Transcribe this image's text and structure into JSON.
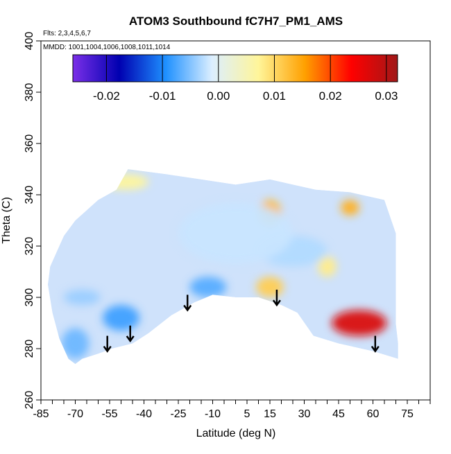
{
  "chart_data": {
    "type": "heatmap",
    "title": "ATOM3 Southbound fC7H7_PM1_AMS",
    "flights_note": "Flts: 2,3,4,5,6,7",
    "mmdd_note": "MMDD: 1001,1004,1006,1008,1011,1014",
    "xlabel": "Latitude (deg N)",
    "ylabel": "Theta (C)",
    "xlim": [
      -85,
      85
    ],
    "ylim": [
      260,
      400
    ],
    "x_tick_labels": [
      "-85",
      "-70",
      "-55",
      "-40",
      "-25",
      "-10",
      "5",
      "15",
      "30",
      "45",
      "60",
      "75"
    ],
    "x_tick_values": [
      -85,
      -70,
      -55,
      -40,
      -25,
      -10,
      5,
      15,
      30,
      45,
      60,
      75
    ],
    "y_tick_labels": [
      "260",
      "280",
      "300",
      "320",
      "340",
      "360",
      "380",
      "400"
    ],
    "y_tick_values": [
      260,
      280,
      300,
      320,
      340,
      360,
      380,
      400
    ],
    "colorbar": {
      "min": -0.026,
      "max": 0.032,
      "tick_labels": [
        "-0.02",
        "-0.01",
        "0.00",
        "0.01",
        "0.02",
        "0.03"
      ],
      "tick_values": [
        -0.02,
        -0.01,
        0.0,
        0.01,
        0.02,
        0.03
      ],
      "colors": [
        "#7b2fe8",
        "#0000b0",
        "#1e90ff",
        "#dcefff",
        "#fff59a",
        "#ffa000",
        "#ff0000",
        "#a01818"
      ]
    },
    "flight_coverage_outline": [
      [
        -82,
        305
      ],
      [
        -81,
        312
      ],
      [
        -78,
        318
      ],
      [
        -75,
        324
      ],
      [
        -70,
        330
      ],
      [
        -65,
        334
      ],
      [
        -60,
        338
      ],
      [
        -52,
        342
      ],
      [
        -47,
        350
      ],
      [
        -30,
        348
      ],
      [
        -15,
        346
      ],
      [
        0,
        344
      ],
      [
        15,
        346
      ],
      [
        25,
        344
      ],
      [
        35,
        342
      ],
      [
        50,
        341
      ],
      [
        65,
        338
      ],
      [
        70,
        325
      ],
      [
        70,
        300
      ],
      [
        70,
        290
      ],
      [
        71,
        282
      ],
      [
        71,
        276
      ],
      [
        60,
        279
      ],
      [
        45,
        282
      ],
      [
        34,
        285
      ],
      [
        27,
        294
      ],
      [
        20,
        297
      ],
      [
        10,
        300
      ],
      [
        0,
        300
      ],
      [
        -10,
        301
      ],
      [
        -18,
        298
      ],
      [
        -28,
        293
      ],
      [
        -38,
        286
      ],
      [
        -45,
        282
      ],
      [
        -54,
        280
      ],
      [
        -60,
        278
      ],
      [
        -67,
        276
      ],
      [
        -70,
        274
      ],
      [
        -73,
        276
      ],
      [
        -77,
        284
      ],
      [
        -80,
        294
      ]
    ],
    "anomaly_regions": [
      {
        "lat": -48,
        "theta": 345,
        "rx": 10,
        "ry": 3,
        "value": 0.007
      },
      {
        "lat": 15,
        "theta": 333,
        "rx": 5,
        "ry": 5,
        "value": 0.013
      },
      {
        "lat": 50,
        "theta": 335,
        "rx": 4,
        "ry": 3,
        "value": 0.014
      },
      {
        "lat": 54,
        "theta": 290,
        "rx": 12,
        "ry": 5,
        "value": 0.027
      },
      {
        "lat": 15,
        "theta": 304,
        "rx": 6,
        "ry": 4,
        "value": 0.011
      },
      {
        "lat": 40,
        "theta": 312,
        "rx": 4,
        "ry": 4,
        "value": 0.008
      },
      {
        "lat": -67,
        "theta": 300,
        "rx": 8,
        "ry": 3,
        "value": -0.004
      },
      {
        "lat": -50,
        "theta": 292,
        "rx": 8,
        "ry": 5,
        "value": -0.008
      },
      {
        "lat": -12,
        "theta": 304,
        "rx": 8,
        "ry": 4,
        "value": -0.007
      },
      {
        "lat": -70,
        "theta": 282,
        "rx": 6,
        "ry": 6,
        "value": -0.006
      },
      {
        "lat": 25,
        "theta": 318,
        "rx": 15,
        "ry": 6,
        "value": -0.003
      },
      {
        "lat": 0,
        "theta": 325,
        "rx": 25,
        "ry": 12,
        "value": -0.002
      }
    ],
    "descent_arrows": [
      {
        "lat": -56,
        "theta_top": 285,
        "theta_bottom": 279
      },
      {
        "lat": -46,
        "theta_top": 289,
        "theta_bottom": 283
      },
      {
        "lat": -21,
        "theta_top": 301,
        "theta_bottom": 295
      },
      {
        "lat": 18,
        "theta_top": 303,
        "theta_bottom": 297
      },
      {
        "lat": 61,
        "theta_top": 285,
        "theta_bottom": 279
      }
    ]
  }
}
